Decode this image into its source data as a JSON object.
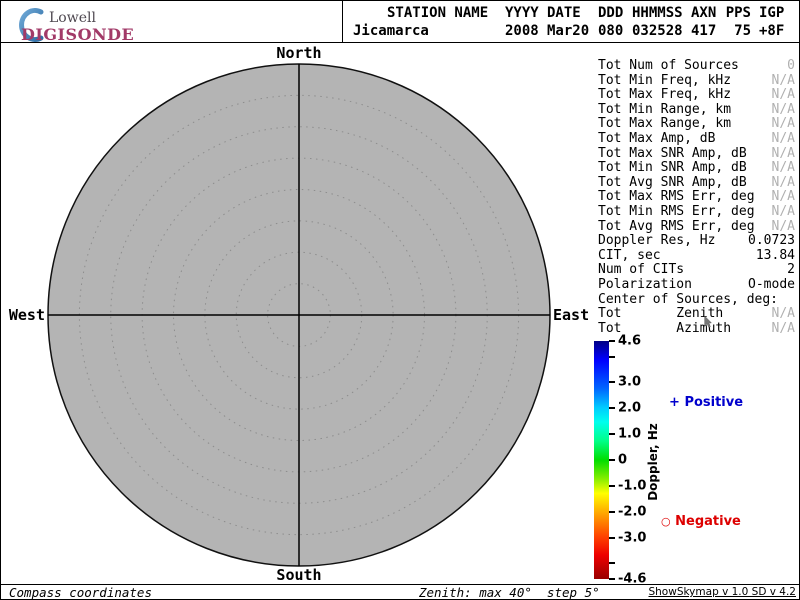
{
  "branding": {
    "line1": "Lowell",
    "line2": "DIGISONDE"
  },
  "header": {
    "columns": [
      {
        "h": "STATION NAME",
        "v": "Jicamarca"
      },
      {
        "h": "YYYY",
        "v": "2008"
      },
      {
        "h": "DATE",
        "v": "Mar20"
      },
      {
        "h": "DDD",
        "v": "080"
      },
      {
        "h": "HHMMSS",
        "v": "032528"
      },
      {
        "h": "AXN",
        "v": "417"
      },
      {
        "h": "PPS",
        "v": "75"
      },
      {
        "h": "IGP",
        "v": "+8F"
      }
    ]
  },
  "compass": {
    "north": "North",
    "south": "South",
    "west": "West",
    "east": "East"
  },
  "stats": {
    "rows": [
      {
        "label": "Tot Num of Sources",
        "value": "0",
        "muted": true
      },
      {
        "label": "Tot Min Freq, kHz",
        "value": "N/A",
        "muted": true
      },
      {
        "label": "Tot Max Freq, kHz",
        "value": "N/A",
        "muted": true
      },
      {
        "label": "Tot Min Range, km",
        "value": "N/A",
        "muted": true
      },
      {
        "label": "Tot Max Range, km",
        "value": "N/A",
        "muted": true
      },
      {
        "label": "Tot Max Amp, dB",
        "value": "N/A",
        "muted": true
      },
      {
        "label": "Tot Max SNR Amp, dB",
        "value": "N/A",
        "muted": true
      },
      {
        "label": "Tot Min SNR Amp, dB",
        "value": "N/A",
        "muted": true
      },
      {
        "label": "Tot Avg SNR Amp, dB",
        "value": "N/A",
        "muted": true
      },
      {
        "label": "Tot Max RMS Err, deg",
        "value": "N/A",
        "muted": true
      },
      {
        "label": "Tot Min RMS Err, deg",
        "value": "N/A",
        "muted": true
      },
      {
        "label": "Tot Avg RMS Err, deg",
        "value": "N/A",
        "muted": true
      },
      {
        "label": "Doppler Res, Hz",
        "value": "0.0723",
        "muted": false
      },
      {
        "label": "CIT, sec",
        "value": "13.84",
        "muted": false
      },
      {
        "label": "Num of CITs",
        "value": "2",
        "muted": false
      },
      {
        "label": "Polarization",
        "value": "O-mode",
        "muted": false
      },
      {
        "label": "Center of Sources, deg:",
        "value": "",
        "muted": false
      },
      {
        "label": "Tot       Zenith",
        "value": "N/A",
        "muted": true
      },
      {
        "label": "Tot       Azimuth",
        "value": "N/A",
        "muted": true
      }
    ]
  },
  "legend": {
    "positive_marker": "+",
    "positive": "Positive",
    "positive_color": "#0000cc",
    "negative_marker": "○",
    "negative": "Negative",
    "negative_color": "#dd0000"
  },
  "footer": {
    "left": "Compass coordinates",
    "center": "Zenith: max 40°  step 5°",
    "right": "ShowSkymap v 1.0  SD v 4.2"
  },
  "chart_data": {
    "type": "scatter",
    "projection": "polar-skymap",
    "station": "Jicamarca",
    "datetime": "2008 Mar20 080 032528",
    "points": [],
    "num_sources": 0,
    "zenith_max_deg": 40,
    "zenith_step_deg": 5,
    "compass_labels": [
      "North",
      "East",
      "South",
      "West"
    ],
    "grid": "dotted-concentric",
    "plot_fill": "#b4b4b4",
    "colorbar": {
      "label": "Doppler, Hz",
      "max": 4.6,
      "min": -4.6,
      "ticks": [
        {
          "v": 4.6,
          "label": "4.6"
        },
        {
          "v": 4.0,
          "label": ""
        },
        {
          "v": 3.0,
          "label": "3.0"
        },
        {
          "v": 2.0,
          "label": "2.0"
        },
        {
          "v": 1.0,
          "label": "1.0"
        },
        {
          "v": 0,
          "label": "0"
        },
        {
          "v": -1.0,
          "label": "-1.0"
        },
        {
          "v": -2.0,
          "label": "-2.0"
        },
        {
          "v": -3.0,
          "label": "-3.0"
        },
        {
          "v": -4.0,
          "label": ""
        },
        {
          "v": -4.6,
          "label": "-4.6"
        }
      ]
    }
  }
}
